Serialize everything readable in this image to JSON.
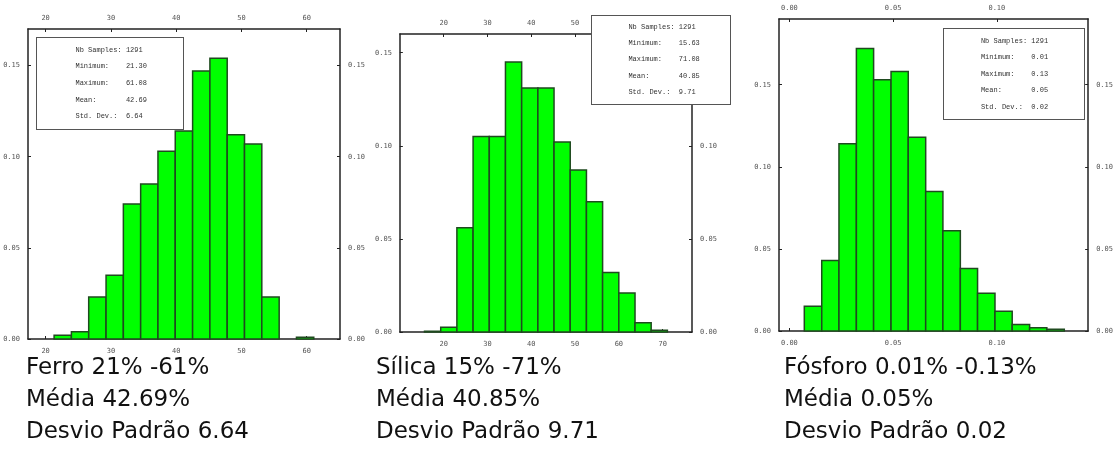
{
  "chart_data": [
    {
      "type": "histogram",
      "title": "Ferro 21% -61%\nMédia 42.69%\nDesvio Padrão 6.64",
      "bins": [
        21.3,
        23.95,
        26.6,
        29.26,
        31.91,
        34.56,
        37.21,
        39.86,
        42.52,
        45.17,
        47.82,
        50.47,
        53.12,
        55.78,
        58.43,
        61.08
      ],
      "values": [
        0.002,
        0.004,
        0.023,
        0.035,
        0.074,
        0.085,
        0.103,
        0.114,
        0.147,
        0.154,
        0.112,
        0.107,
        0.023,
        0,
        0.001
      ],
      "color": "#00ff00",
      "xlim": [
        17.3,
        65.1
      ],
      "xticks": [
        20,
        30,
        40,
        50,
        60
      ],
      "x2lim": [
        17.3,
        65.1
      ],
      "x2ticks": [
        20,
        30,
        40,
        50,
        60
      ],
      "ylim": [
        0,
        0.17
      ],
      "yticks": [
        {
          "value": 0,
          "label": "0.00"
        },
        {
          "value": 0.05,
          "label": "0.05"
        },
        {
          "value": 0.1,
          "label": "0.10"
        },
        {
          "value": 0.15,
          "label": "0.15"
        }
      ],
      "y2lim": [
        0,
        0.17
      ],
      "y2ticks": [
        {
          "value": 0,
          "label": "0.00"
        },
        {
          "value": 0.05,
          "label": "0.05"
        },
        {
          "value": 0.1,
          "label": "0.10"
        },
        {
          "value": 0.15,
          "label": "0.15"
        }
      ],
      "annotations": [
        "Nb Samples: 1291",
        "Minimum:    21.30",
        "Maximum:    61.08",
        "Mean:       42.69",
        "Std. Dev.:  6.64"
      ],
      "grid": false
    },
    {
      "type": "histogram",
      "title": "Sílica 15% -71%\nMédia 40.85%\nDesvio Padrão 9.71",
      "bins": [
        15.63,
        19.33,
        23.02,
        26.72,
        30.42,
        34.11,
        37.81,
        41.51,
        45.2,
        48.9,
        52.6,
        56.29,
        59.99,
        63.69,
        67.38,
        71.08
      ],
      "values": [
        0.0004,
        0.0025,
        0.056,
        0.105,
        0.105,
        0.145,
        0.131,
        0.131,
        0.102,
        0.087,
        0.07,
        0.032,
        0.021,
        0.005,
        0.001
      ],
      "color": "#00ff00",
      "xlim": [
        10,
        76.7
      ],
      "xticks": [
        20,
        30,
        40,
        50,
        60,
        70
      ],
      "x2lim": [
        10,
        76.7
      ],
      "x2ticks": [
        20,
        30,
        40,
        50
      ],
      "ylim": [
        0,
        0.16
      ],
      "yticks": [
        {
          "value": 0,
          "label": "0.00"
        },
        {
          "value": 0.05,
          "label": "0.05"
        },
        {
          "value": 0.1,
          "label": "0.10"
        },
        {
          "value": 0.15,
          "label": "0.15"
        }
      ],
      "y2lim": [
        0,
        0.16
      ],
      "y2ticks": [
        {
          "value": 0,
          "label": "0.00"
        },
        {
          "value": 0.05,
          "label": "0.05"
        },
        {
          "value": 0.1,
          "label": "0.10"
        }
      ],
      "annotations": [
        "Nb Samples: 1291",
        "Minimum:    15.63",
        "Maximum:    71.08",
        "Mean:       40.85",
        "Std. Dev.:  9.71"
      ],
      "grid": false
    },
    {
      "type": "histogram",
      "title": "Fósforo 0.01% -0.13%\nMédia 0.05%\nDesvio Padrão 0.02",
      "bins": [
        0.0072,
        0.0156,
        0.0239,
        0.0323,
        0.0406,
        0.049,
        0.0573,
        0.0657,
        0.074,
        0.0824,
        0.0907,
        0.0991,
        0.1074,
        0.1158,
        0.1241,
        0.1325
      ],
      "values": [
        0.015,
        0.043,
        0.114,
        0.172,
        0.153,
        0.158,
        0.118,
        0.085,
        0.061,
        0.038,
        0.023,
        0.012,
        0.004,
        0.002,
        0.001
      ],
      "color": "#00ff00",
      "xlim": [
        -0.005,
        0.144
      ],
      "xticks": [
        {
          "value": 0,
          "label": "0.00"
        },
        {
          "value": 0.05,
          "label": "0.05"
        },
        {
          "value": 0.1,
          "label": "0.10"
        }
      ],
      "x2lim": [
        -0.005,
        0.144
      ],
      "x2ticks": [
        {
          "value": 0,
          "label": "0.00"
        },
        {
          "value": 0.05,
          "label": "0.05"
        },
        {
          "value": 0.1,
          "label": "0.10"
        }
      ],
      "ylim": [
        0,
        0.19
      ],
      "yticks": [
        {
          "value": 0,
          "label": "0.00"
        },
        {
          "value": 0.05,
          "label": "0.05"
        },
        {
          "value": 0.1,
          "label": "0.10"
        },
        {
          "value": 0.15,
          "label": "0.15"
        }
      ],
      "y2lim": [
        0,
        0.19
      ],
      "y2ticks": [
        {
          "value": 0,
          "label": "0.00"
        },
        {
          "value": 0.05,
          "label": "0.05"
        },
        {
          "value": 0.1,
          "label": "0.10"
        },
        {
          "value": 0.15,
          "label": "0.15"
        }
      ],
      "annotations": [
        "Nb Samples: 1291",
        "Minimum:    0.01",
        "Maximum:    0.13",
        "Mean:       0.05",
        "Std. Dev.:  0.02"
      ],
      "grid": false
    }
  ]
}
